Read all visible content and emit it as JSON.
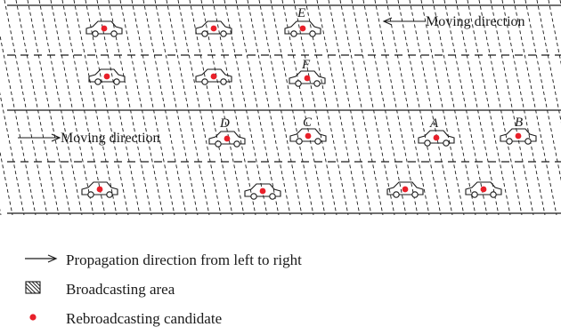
{
  "diagram": {
    "top_direction_label": "Moving direction",
    "bottom_direction_label": "Moving direction",
    "cars": [
      {
        "name": "car-e",
        "label": "E"
      },
      {
        "name": "car-f",
        "label": "F"
      },
      {
        "name": "car-d",
        "label": "D"
      },
      {
        "name": "car-c",
        "label": "C"
      },
      {
        "name": "car-a",
        "label": "A"
      },
      {
        "name": "car-b",
        "label": "B"
      }
    ],
    "colors": {
      "candidate_dot": "#e8202a",
      "stroke": "#1a1a1a"
    }
  },
  "legend": [
    {
      "name": "legend-propagation",
      "text": "Propagation direction from left to right",
      "icon": "arrow-right-icon"
    },
    {
      "name": "legend-broadcasting-area",
      "text": "Broadcasting area",
      "icon": "hatched-box-icon"
    },
    {
      "name": "legend-rebroadcasting-candidate",
      "text": "Rebroadcasting candidate",
      "icon": "red-dot-icon"
    }
  ]
}
